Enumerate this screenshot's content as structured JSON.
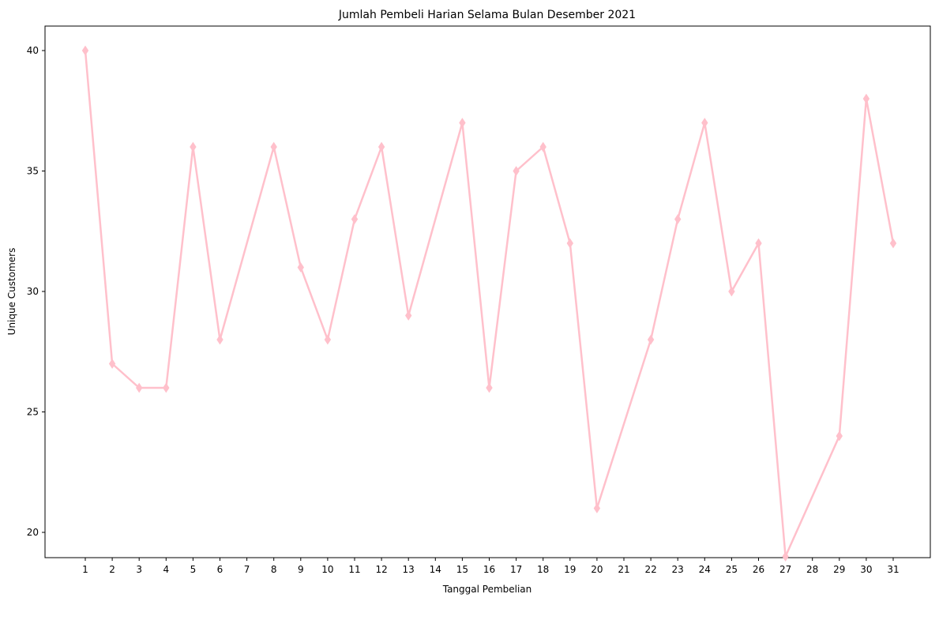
{
  "chart_data": {
    "type": "line",
    "title": "Jumlah Pembeli Harian Selama Bulan Desember 2021",
    "xlabel": "Tanggal Pembelian",
    "ylabel": "Unique Customers",
    "x_ticks": [
      "1",
      "2",
      "3",
      "4",
      "5",
      "6",
      "7",
      "8",
      "9",
      "10",
      "11",
      "12",
      "13",
      "14",
      "15",
      "16",
      "17",
      "18",
      "19",
      "20",
      "21",
      "22",
      "23",
      "24",
      "25",
      "26",
      "27",
      "28",
      "29",
      "30",
      "31"
    ],
    "y_ticks": [
      20,
      25,
      30,
      35,
      40
    ],
    "ylim": [
      18,
      41
    ],
    "grid": false,
    "marker": "diamond",
    "color": "#ffc0cb",
    "points": [
      {
        "x": 1,
        "y": 40
      },
      {
        "x": 2,
        "y": 27
      },
      {
        "x": 3,
        "y": 26
      },
      {
        "x": 4,
        "y": 26
      },
      {
        "x": 5,
        "y": 36
      },
      {
        "x": 6,
        "y": 28
      },
      {
        "x": 8,
        "y": 36
      },
      {
        "x": 9,
        "y": 31
      },
      {
        "x": 10,
        "y": 28
      },
      {
        "x": 11,
        "y": 33
      },
      {
        "x": 12,
        "y": 36
      },
      {
        "x": 13,
        "y": 29
      },
      {
        "x": 15,
        "y": 37
      },
      {
        "x": 16,
        "y": 26
      },
      {
        "x": 17,
        "y": 35
      },
      {
        "x": 18,
        "y": 36
      },
      {
        "x": 19,
        "y": 32
      },
      {
        "x": 20,
        "y": 21
      },
      {
        "x": 22,
        "y": 28
      },
      {
        "x": 23,
        "y": 33
      },
      {
        "x": 24,
        "y": 37
      },
      {
        "x": 25,
        "y": 30
      },
      {
        "x": 26,
        "y": 32
      },
      {
        "x": 27,
        "y": 19
      },
      {
        "x": 29,
        "y": 24
      },
      {
        "x": 30,
        "y": 38
      },
      {
        "x": 31,
        "y": 32
      }
    ]
  }
}
